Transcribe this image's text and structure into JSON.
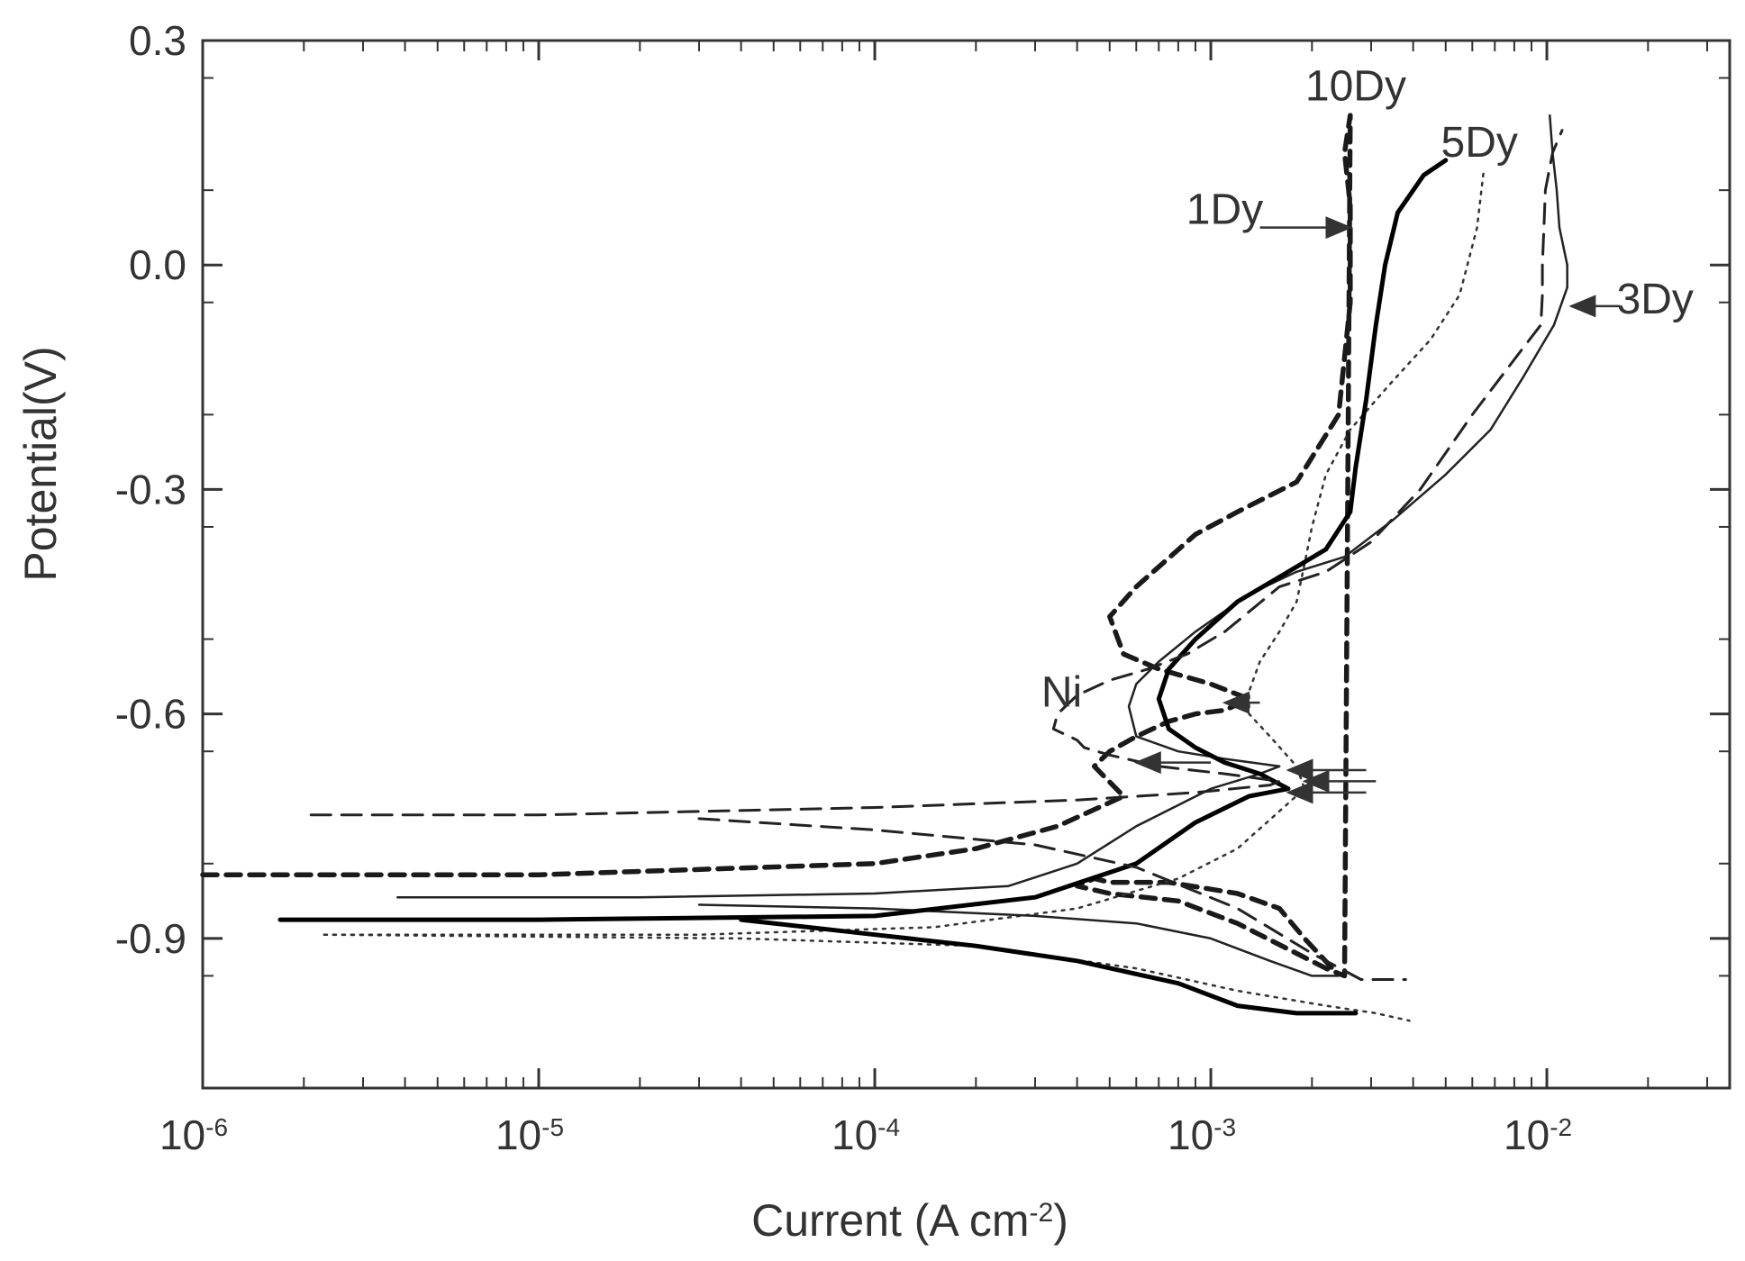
{
  "chart_data": {
    "type": "line",
    "title": "",
    "xlabel": {
      "base": "Current (A cm",
      "sup": "-2",
      "close": ")"
    },
    "ylabel": "Potential(V)",
    "x_scale": "log",
    "xlim": [
      1e-06,
      0.035
    ],
    "ylim": [
      -1.1,
      0.3
    ],
    "x_ticks": [
      {
        "value": 1e-06,
        "base": "10",
        "exp": "-6"
      },
      {
        "value": 1e-05,
        "base": "10",
        "exp": "-5"
      },
      {
        "value": 0.0001,
        "base": "10",
        "exp": "-4"
      },
      {
        "value": 0.001,
        "base": "10",
        "exp": "-3"
      },
      {
        "value": 0.01,
        "base": "10",
        "exp": "-2"
      }
    ],
    "y_ticks": [
      {
        "value": 0.3,
        "label": "0.3"
      },
      {
        "value": 0.0,
        "label": "0.0"
      },
      {
        "value": -0.3,
        "label": "-0.3"
      },
      {
        "value": -0.6,
        "label": "-0.6"
      },
      {
        "value": -0.9,
        "label": "-0.9"
      }
    ],
    "grid": false,
    "series": [
      {
        "name": "10Dy",
        "color": "#1a1a1a",
        "style": "thick-dash",
        "x": [
          1e-06,
          1e-05,
          0.0001,
          0.0002,
          0.00035,
          0.00055,
          0.00045,
          0.0005,
          0.0006,
          0.00075,
          0.0009,
          0.0011,
          0.0013,
          0.001,
          0.0007,
          0.00055,
          0.0005,
          0.0006,
          0.0009,
          0.0012,
          0.0018,
          0.0024,
          0.0026,
          0.0026,
          0.0025,
          0.0026,
          0.0025,
          0.0022,
          0.0018,
          0.0012,
          0.0008,
          0.0005,
          0.0004,
          0.00045,
          0.0005,
          0.00075,
          0.0012,
          0.0016,
          0.0019,
          0.0023
        ],
        "y": [
          -0.815,
          -0.815,
          -0.8,
          -0.78,
          -0.75,
          -0.71,
          -0.67,
          -0.65,
          -0.63,
          -0.61,
          -0.6,
          -0.595,
          -0.58,
          -0.56,
          -0.54,
          -0.52,
          -0.47,
          -0.43,
          -0.36,
          -0.33,
          -0.29,
          -0.2,
          -0.05,
          0.08,
          0.15,
          0.2,
          -0.95,
          -0.94,
          -0.92,
          -0.88,
          -0.85,
          -0.84,
          -0.83,
          -0.82,
          -0.825,
          -0.825,
          -0.84,
          -0.86,
          -0.9,
          -0.94
        ]
      },
      {
        "name": "5Dy",
        "color": "#333333",
        "style": "dotted",
        "x": [
          2.3e-06,
          3e-05,
          0.00015,
          0.0004,
          0.0008,
          0.0012,
          0.0016,
          0.0019,
          0.0018,
          0.0015,
          0.0013,
          0.0013,
          0.0014,
          0.0016,
          0.0018,
          0.0019,
          0.002,
          0.0022,
          0.0026,
          0.0034,
          0.0045,
          0.0055,
          0.0062,
          0.0065,
          2.3e-06,
          4e-05,
          0.0002,
          0.0006,
          0.0012,
          0.0022,
          0.0031,
          0.0039
        ],
        "y": [
          -0.895,
          -0.895,
          -0.885,
          -0.86,
          -0.82,
          -0.78,
          -0.73,
          -0.7,
          -0.67,
          -0.63,
          -0.6,
          -0.57,
          -0.53,
          -0.49,
          -0.45,
          -0.4,
          -0.35,
          -0.28,
          -0.22,
          -0.16,
          -0.1,
          -0.04,
          0.05,
          0.13,
          -0.895,
          -0.9,
          -0.91,
          -0.94,
          -0.97,
          -0.99,
          -1.0,
          -1.01
        ]
      },
      {
        "name": "3Dy",
        "color": "#222222",
        "style": "thin-solid",
        "x": [
          3.8e-06,
          2e-05,
          0.0001,
          0.00025,
          0.0004,
          0.0006,
          0.001,
          0.0014,
          0.0016,
          0.0011,
          0.0008,
          0.0006,
          0.00057,
          0.0006,
          0.0007,
          0.0009,
          0.0013,
          0.0018,
          0.0025,
          0.0035,
          0.005,
          0.0068,
          0.0085,
          0.0105,
          0.0115,
          0.0115,
          0.0109,
          0.0107,
          0.0104,
          0.0102,
          3e-05,
          0.0001,
          0.0003,
          0.0006,
          0.001,
          0.0015,
          0.002,
          0.0024
        ],
        "y": [
          -0.845,
          -0.845,
          -0.84,
          -0.83,
          -0.8,
          -0.75,
          -0.7,
          -0.68,
          -0.67,
          -0.66,
          -0.65,
          -0.63,
          -0.59,
          -0.56,
          -0.53,
          -0.49,
          -0.44,
          -0.41,
          -0.39,
          -0.34,
          -0.28,
          -0.22,
          -0.15,
          -0.08,
          -0.03,
          0.0,
          0.05,
          0.1,
          0.15,
          0.2,
          -0.855,
          -0.86,
          -0.87,
          -0.88,
          -0.9,
          -0.93,
          -0.95,
          -0.95
        ]
      },
      {
        "name": "1Dy",
        "color": "#000000",
        "style": "thick-solid",
        "x": [
          1.7e-06,
          1e-05,
          0.0001,
          0.0003,
          0.0006,
          0.0009,
          0.0013,
          0.0017,
          0.0014,
          0.0011,
          0.0009,
          0.00075,
          0.0007,
          0.00075,
          0.0009,
          0.0012,
          0.0017,
          0.0022,
          0.0026,
          0.0027,
          0.0029,
          0.0031,
          0.0033,
          0.0036,
          0.0043,
          0.005,
          4e-05,
          0.0001,
          0.0002,
          0.0004,
          0.0008,
          0.0012,
          0.0018,
          0.0027
        ],
        "y": [
          -0.875,
          -0.875,
          -0.87,
          -0.845,
          -0.8,
          -0.745,
          -0.71,
          -0.7,
          -0.68,
          -0.665,
          -0.645,
          -0.62,
          -0.58,
          -0.54,
          -0.5,
          -0.45,
          -0.41,
          -0.38,
          -0.33,
          -0.27,
          -0.18,
          -0.08,
          0.0,
          0.07,
          0.12,
          0.14,
          -0.875,
          -0.895,
          -0.91,
          -0.93,
          -0.96,
          -0.99,
          -1.0,
          -1.0
        ]
      },
      {
        "name": "Ni",
        "color": "#222222",
        "style": "dash",
        "x": [
          2.1e-06,
          1e-05,
          0.0001,
          0.0004,
          0.0009,
          0.0015,
          0.0016,
          0.0011,
          0.0007,
          0.0005,
          0.00042,
          0.0004,
          0.00034,
          0.00035,
          0.0004,
          0.0005,
          0.00065,
          0.00085,
          0.0011,
          0.0016,
          0.0022,
          0.003,
          0.0042,
          0.006,
          0.0082,
          0.0096,
          0.0097,
          0.0097,
          0.0098,
          0.0099,
          0.0104,
          0.0111,
          3e-05,
          0.0001,
          0.0003,
          0.0006,
          0.0012,
          0.002,
          0.0028,
          0.0038
        ],
        "y": [
          -0.735,
          -0.735,
          -0.725,
          -0.715,
          -0.705,
          -0.695,
          -0.69,
          -0.68,
          -0.67,
          -0.655,
          -0.645,
          -0.635,
          -0.62,
          -0.6,
          -0.575,
          -0.555,
          -0.54,
          -0.52,
          -0.49,
          -0.43,
          -0.41,
          -0.37,
          -0.3,
          -0.2,
          -0.12,
          -0.08,
          -0.04,
          0.0,
          0.05,
          0.1,
          0.15,
          0.18,
          -0.74,
          -0.755,
          -0.775,
          -0.805,
          -0.86,
          -0.92,
          -0.955,
          -0.955
        ]
      }
    ],
    "annotations": [
      {
        "text": "10Dy",
        "x": 0.0027,
        "y": 0.22
      },
      {
        "text": "5Dy",
        "x": 0.0063,
        "y": 0.145
      },
      {
        "text": "1Dy",
        "x": 0.0011,
        "y": 0.055
      },
      {
        "text": "3Dy",
        "x": 0.021,
        "y": -0.065
      },
      {
        "text": "Ni",
        "x": 0.00036,
        "y": -0.59
      }
    ]
  }
}
